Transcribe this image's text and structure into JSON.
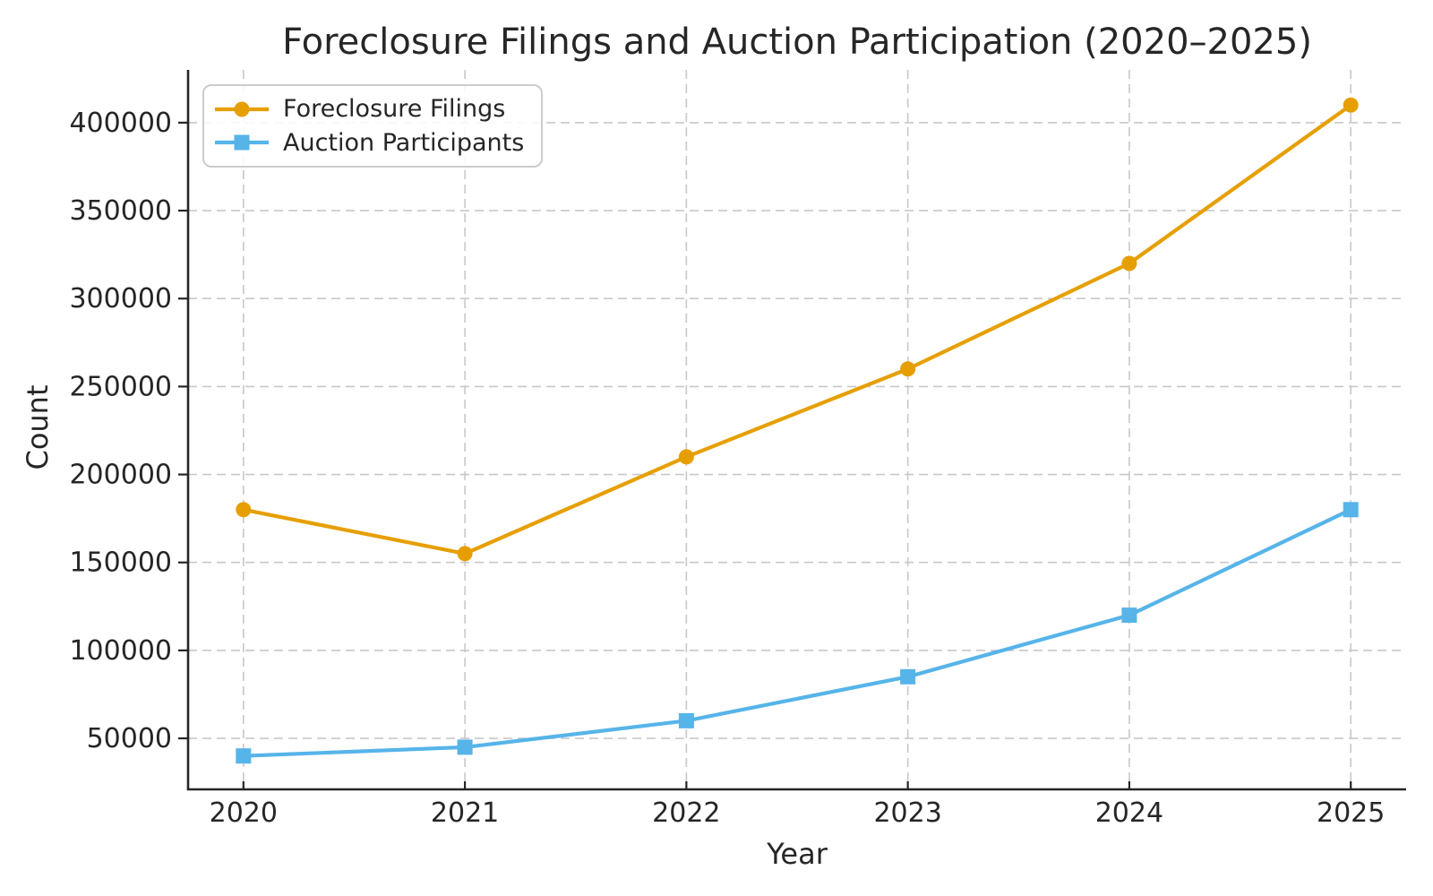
{
  "chart_data": {
    "type": "line",
    "title": "Foreclosure Filings and Auction Participation (2020–2025)",
    "xlabel": "Year",
    "ylabel": "Count",
    "x": [
      2020,
      2021,
      2022,
      2023,
      2024,
      2025
    ],
    "series": [
      {
        "name": "Foreclosure Filings",
        "marker": "circle",
        "color": "#E69F00",
        "values": [
          180000,
          155000,
          210000,
          260000,
          320000,
          410000
        ]
      },
      {
        "name": "Auction Participants",
        "marker": "square",
        "color": "#56B4E9",
        "values": [
          40000,
          45000,
          60000,
          85000,
          120000,
          180000
        ]
      }
    ],
    "xlim": [
      2019.75,
      2025.25
    ],
    "ylim": [
      21000,
      430000
    ],
    "yticks": [
      50000,
      100000,
      150000,
      200000,
      250000,
      300000,
      350000,
      400000
    ],
    "grid": true,
    "grid_style": "dashed",
    "legend_position": "upper-left",
    "colors": {
      "text": "#262626",
      "spine": "#262626",
      "grid": "#c8c8c8",
      "background": "#ffffff"
    }
  }
}
